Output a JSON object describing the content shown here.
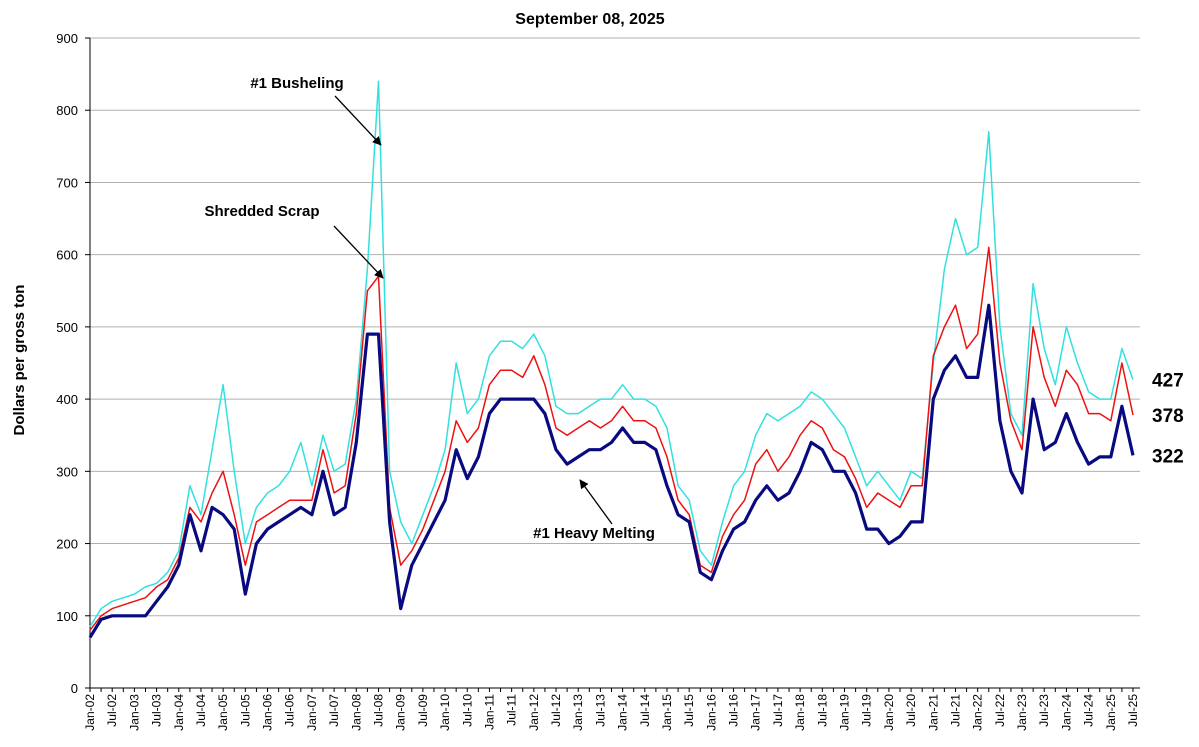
{
  "chart_data": {
    "type": "line",
    "title": "September 08, 2025",
    "y_label": "Dollars per gross ton",
    "categories": [
      "Jan-02",
      null,
      "Jul-02",
      null,
      "Jan-03",
      null,
      "Jul-03",
      null,
      "Jan-04",
      null,
      "Jul-04",
      null,
      "Jan-05",
      null,
      "Jul-05",
      null,
      "Jan-06",
      null,
      "Jul-06",
      null,
      "Jan-07",
      null,
      "Jul-07",
      null,
      "Jan-08",
      null,
      "Jul-08",
      null,
      "Jan-09",
      null,
      "Jul-09",
      null,
      "Jan-10",
      null,
      "Jul-10",
      null,
      "Jan-11",
      null,
      "Jul-11",
      null,
      "Jan-12",
      null,
      "Jul-12",
      null,
      "Jan-13",
      null,
      "Jul-13",
      null,
      "Jan-14",
      null,
      "Jul-14",
      null,
      "Jan-15",
      null,
      "Jul-15",
      null,
      "Jan-16",
      null,
      "Jul-16",
      null,
      "Jan-17",
      null,
      "Jul-17",
      null,
      "Jan-18",
      null,
      "Jul-18",
      null,
      "Jan-19",
      null,
      "Jul-19",
      null,
      "Jan-20",
      null,
      "Jul-20",
      null,
      "Jan-21",
      null,
      "Jul-21",
      null,
      "Jan-22",
      null,
      "Jul-22",
      null,
      "Jan-23",
      null,
      "Jul-23",
      null,
      "Jan-24",
      null,
      "Jul-24",
      null,
      "Jan-25",
      null,
      "Jul-25"
    ],
    "series": [
      {
        "name": "#1 Busheling",
        "color": "#33e0e0",
        "values": [
          85,
          110,
          120,
          125,
          130,
          140,
          145,
          160,
          190,
          280,
          240,
          330,
          420,
          300,
          200,
          250,
          270,
          280,
          300,
          340,
          280,
          350,
          300,
          310,
          400,
          580,
          840,
          300,
          230,
          200,
          240,
          280,
          330,
          450,
          380,
          400,
          460,
          480,
          480,
          470,
          490,
          460,
          390,
          380,
          380,
          390,
          400,
          400,
          420,
          400,
          400,
          390,
          360,
          280,
          260,
          190,
          170,
          230,
          280,
          300,
          350,
          380,
          370,
          380,
          390,
          410,
          400,
          380,
          360,
          320,
          280,
          300,
          280,
          260,
          300,
          290,
          450,
          580,
          650,
          600,
          610,
          770,
          500,
          380,
          350,
          560,
          470,
          420,
          500,
          450,
          410,
          400,
          400,
          470,
          427
        ]
      },
      {
        "name": "Shredded Scrap",
        "color": "#ee1111",
        "values": [
          80,
          100,
          110,
          115,
          120,
          125,
          140,
          150,
          180,
          250,
          230,
          270,
          300,
          240,
          170,
          230,
          240,
          250,
          260,
          260,
          260,
          330,
          270,
          280,
          380,
          550,
          570,
          250,
          170,
          190,
          220,
          260,
          300,
          370,
          340,
          360,
          420,
          440,
          440,
          430,
          460,
          420,
          360,
          350,
          360,
          370,
          360,
          370,
          390,
          370,
          370,
          360,
          320,
          260,
          240,
          170,
          160,
          210,
          240,
          260,
          310,
          330,
          300,
          320,
          350,
          370,
          360,
          330,
          320,
          290,
          250,
          270,
          260,
          250,
          280,
          280,
          460,
          500,
          530,
          470,
          490,
          610,
          450,
          370,
          330,
          500,
          430,
          390,
          440,
          420,
          380,
          380,
          370,
          450,
          378
        ]
      },
      {
        "name": "#1 Heavy Melting",
        "color": "#0a0a80",
        "values": [
          70,
          95,
          100,
          100,
          100,
          100,
          120,
          140,
          170,
          240,
          190,
          250,
          240,
          220,
          130,
          200,
          220,
          230,
          240,
          250,
          240,
          300,
          240,
          250,
          340,
          490,
          490,
          230,
          110,
          170,
          200,
          230,
          260,
          330,
          290,
          320,
          380,
          400,
          400,
          400,
          400,
          380,
          330,
          310,
          320,
          330,
          330,
          340,
          360,
          340,
          340,
          330,
          280,
          240,
          230,
          160,
          150,
          190,
          220,
          230,
          260,
          280,
          260,
          270,
          300,
          340,
          330,
          300,
          300,
          270,
          220,
          220,
          200,
          210,
          230,
          230,
          400,
          440,
          460,
          430,
          430,
          530,
          370,
          300,
          270,
          400,
          330,
          340,
          380,
          340,
          310,
          320,
          320,
          390,
          322
        ]
      }
    ],
    "ylim": [
      0,
      900
    ],
    "yticks": [
      0,
      100,
      200,
      300,
      400,
      500,
      600,
      700,
      800,
      900
    ],
    "grid": true
  }
}
